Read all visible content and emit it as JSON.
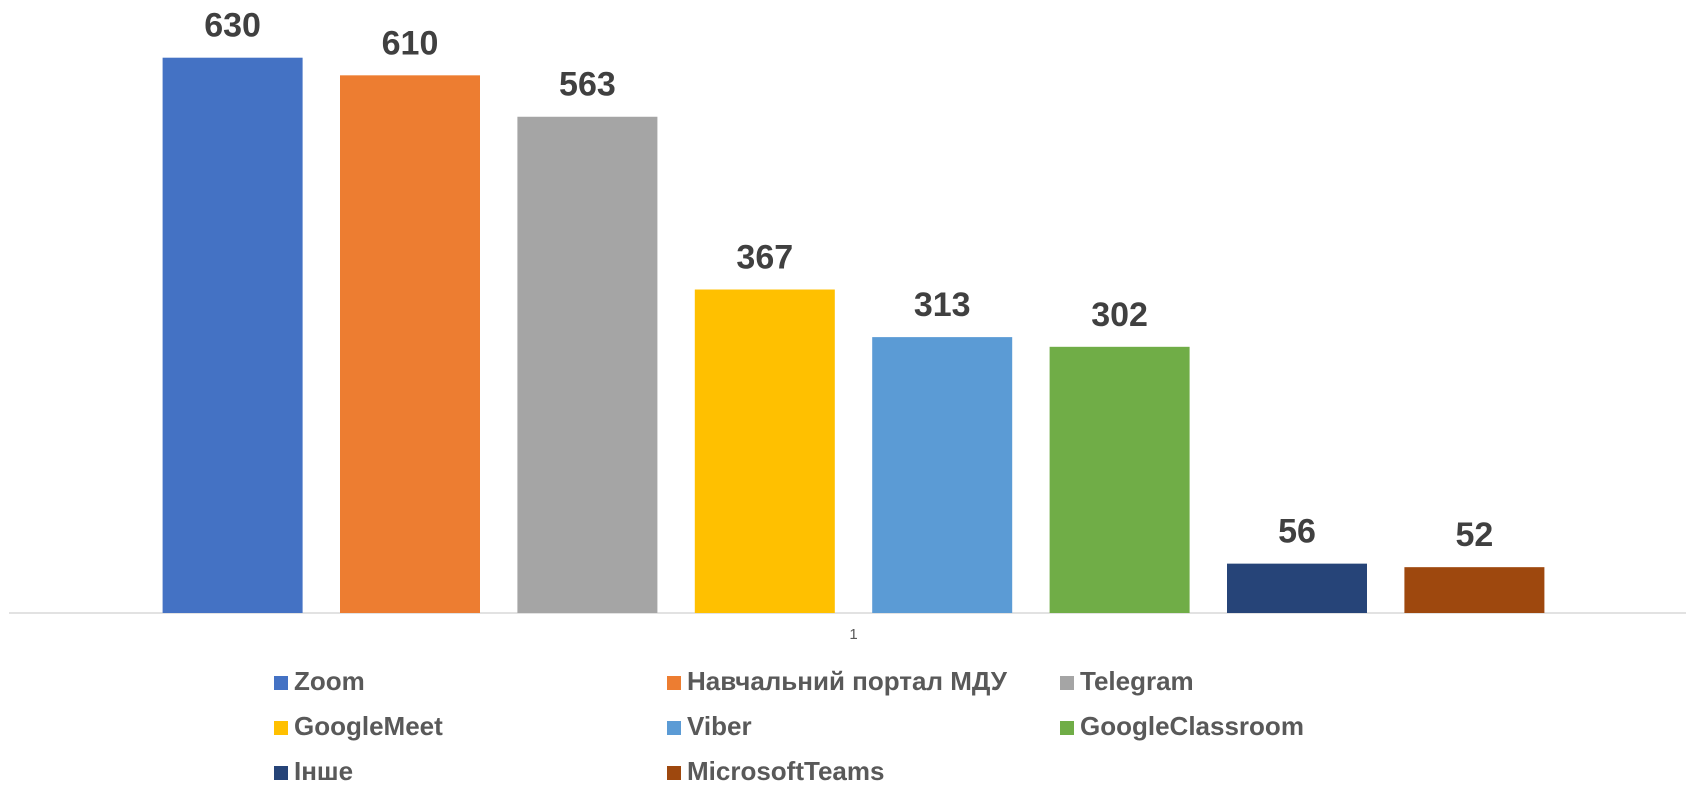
{
  "chart_data": {
    "type": "bar",
    "categories": [
      "1"
    ],
    "series": [
      {
        "name": "Zoom",
        "color": "#4472c4",
        "values": [
          630
        ]
      },
      {
        "name": "Навчальний портал МДУ",
        "color": "#ed7d31",
        "values": [
          610
        ]
      },
      {
        "name": "Telegram",
        "color": "#a5a5a5",
        "values": [
          563
        ]
      },
      {
        "name": "GoogleMeet",
        "color": "#ffc000",
        "values": [
          367
        ]
      },
      {
        "name": "Viber",
        "color": "#5b9bd5",
        "values": [
          313
        ]
      },
      {
        "name": "GoogleClassroom",
        "color": "#70ad47",
        "values": [
          302
        ]
      },
      {
        "name": "Інше",
        "color": "#264478",
        "values": [
          56
        ]
      },
      {
        "name": "MicrosoftTeams",
        "color": "#9e480e",
        "values": [
          52
        ]
      }
    ],
    "ylim": [
      0,
      700
    ],
    "legend": "bottom"
  }
}
